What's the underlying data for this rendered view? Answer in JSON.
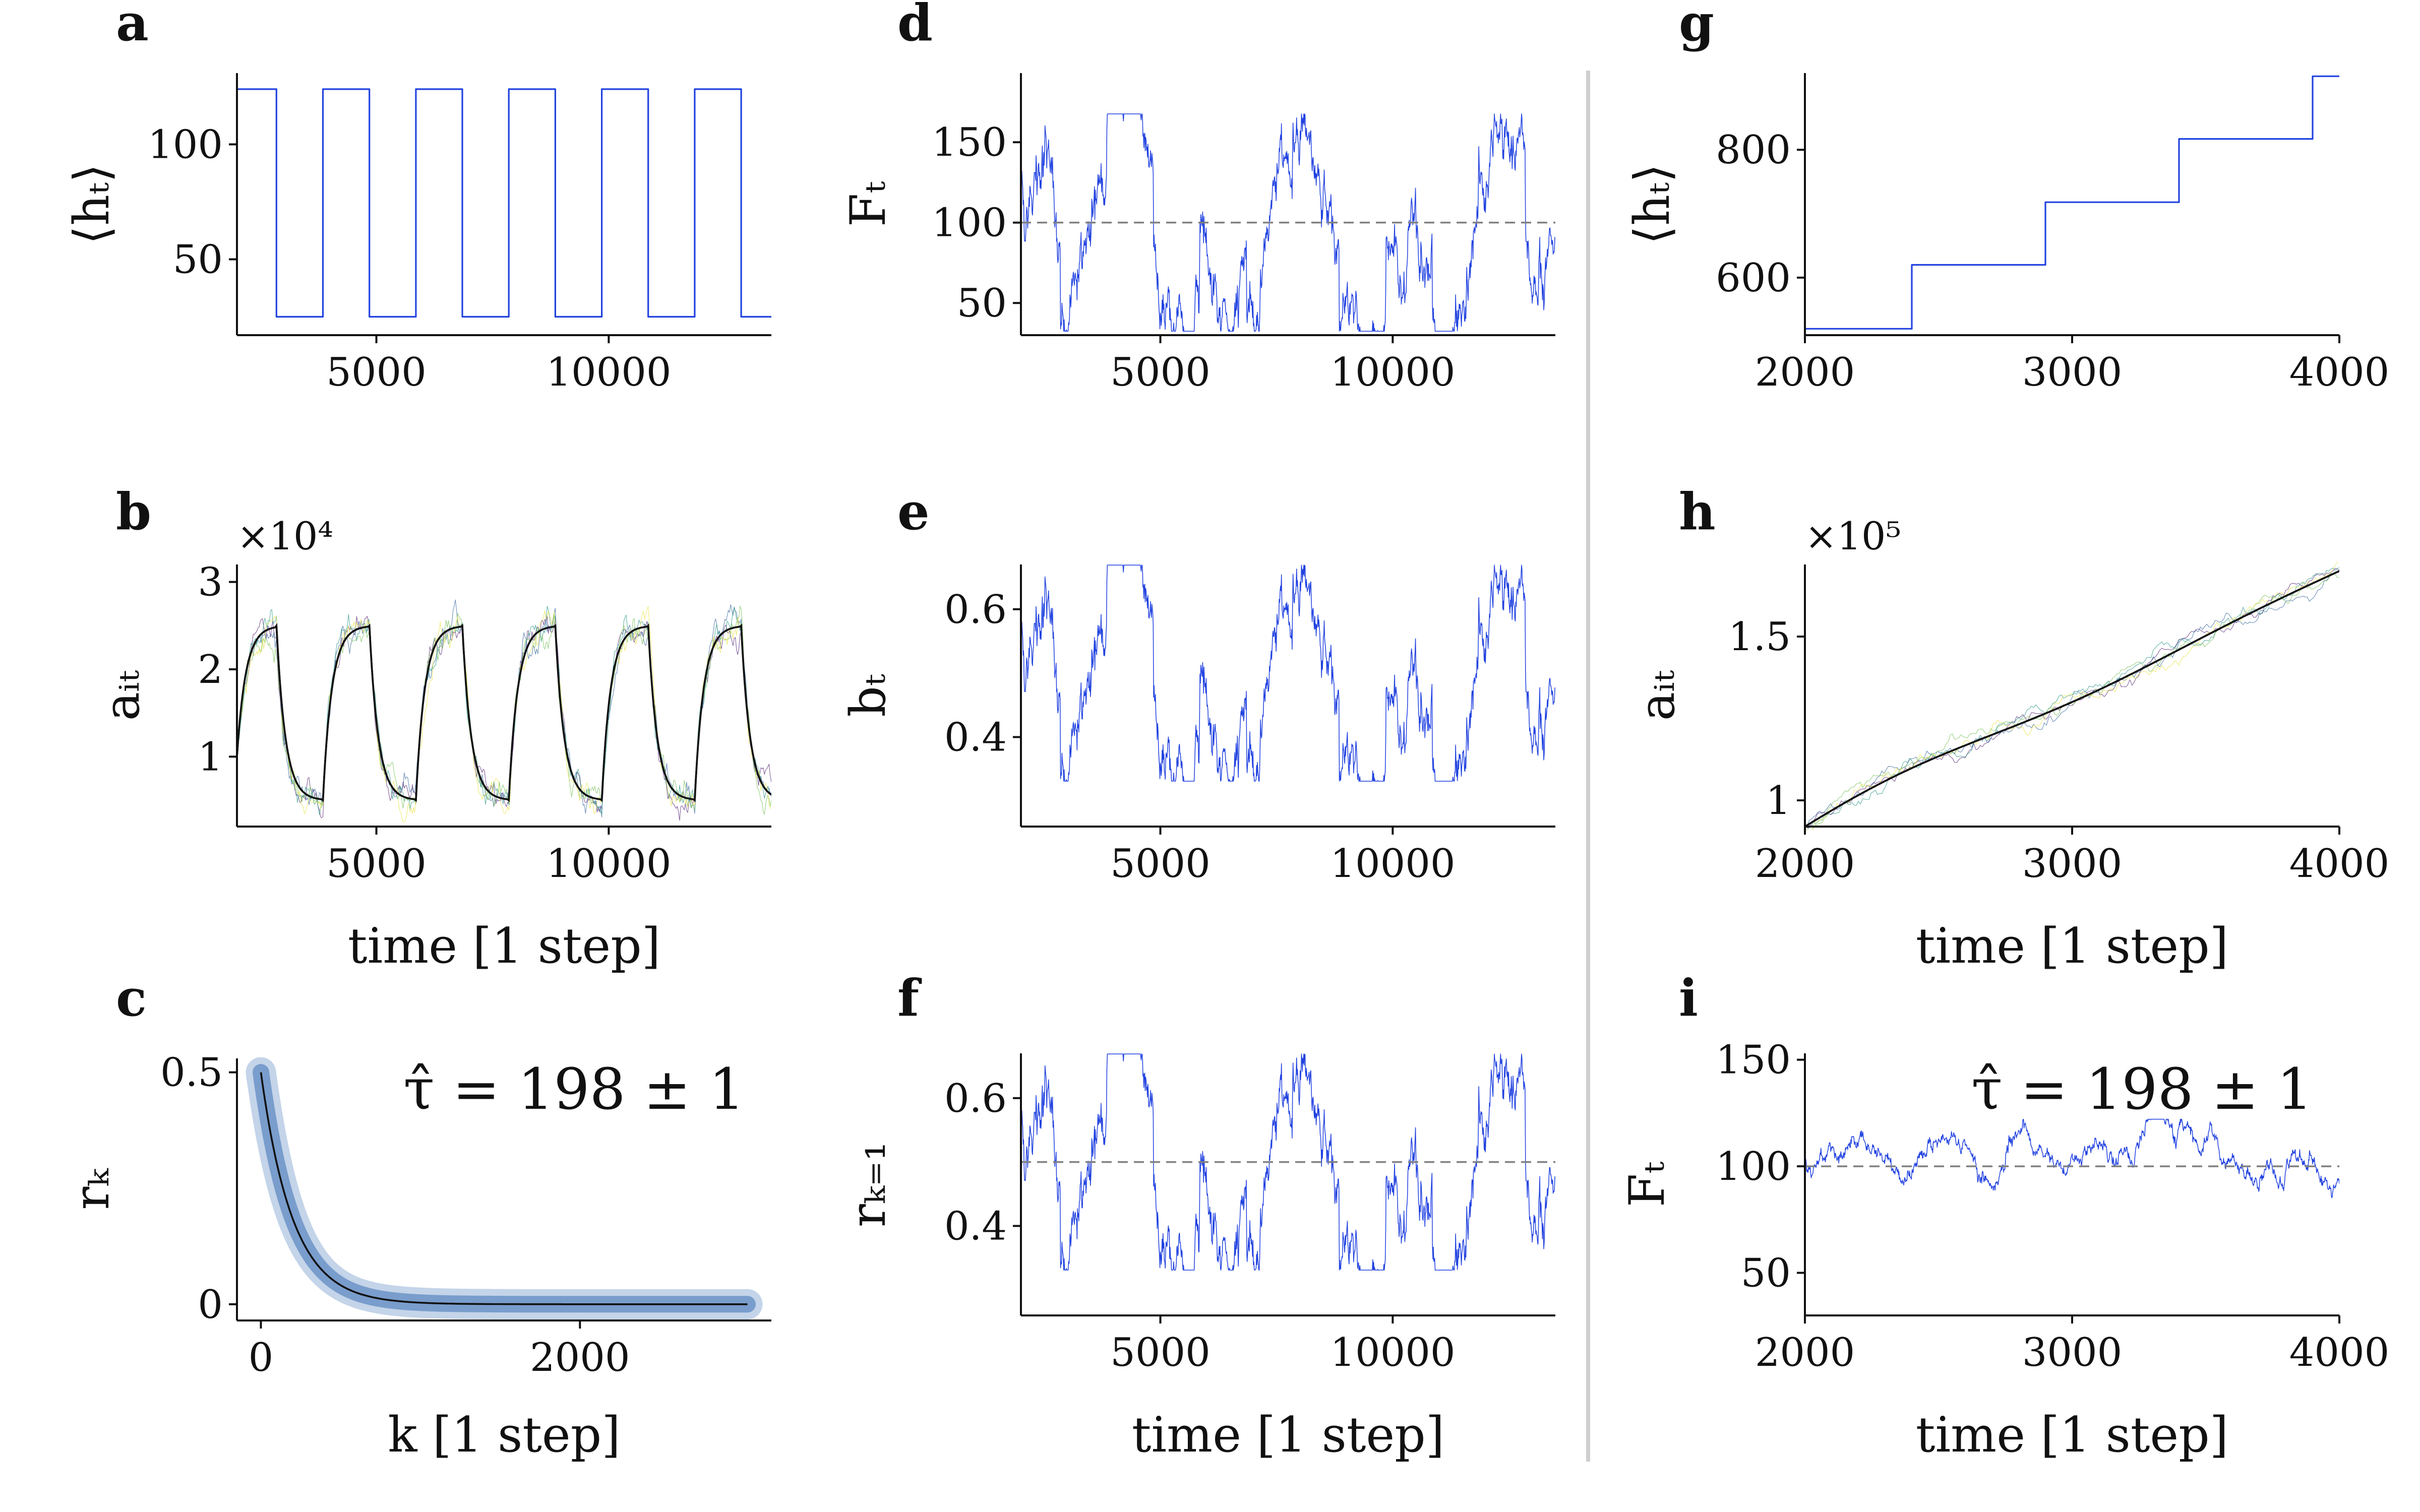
{
  "chart_data": [
    {
      "panel": "a",
      "type": "line",
      "ylabel": "⟨hₜ⟩",
      "xlabel": "",
      "xlim": [
        2000,
        13500
      ],
      "ylim": [
        17,
        131
      ],
      "xticks": [
        5000,
        10000
      ],
      "yticks": [
        50,
        100
      ],
      "series": [
        {
          "name": "⟨hₜ⟩",
          "kind": "step",
          "color": "#2142e0",
          "width": 3.2,
          "x": [
            2000,
            2850,
            2850,
            3850,
            3850,
            4850,
            4850,
            5850,
            5850,
            6850,
            6850,
            7850,
            7850,
            8850,
            8850,
            9850,
            9850,
            10850,
            10850,
            11850,
            11850,
            12850,
            12850,
            13500
          ],
          "y": [
            124,
            124,
            25,
            25,
            124,
            124,
            25,
            25,
            124,
            124,
            25,
            25,
            124,
            124,
            25,
            25,
            124,
            124,
            25,
            25,
            124,
            124,
            25,
            25
          ]
        }
      ]
    },
    {
      "panel": "b",
      "type": "line",
      "ylabel": "aᵢₜ",
      "xlabel": "time [1 step]",
      "sci_label": "×10⁴",
      "xlim": [
        2000,
        13500
      ],
      "ylim": [
        0.2,
        3.2
      ],
      "xticks": [
        5000,
        10000
      ],
      "yticks": [
        1,
        2,
        3
      ],
      "series": [
        {
          "name": "mean",
          "kind": "cycle",
          "color": "#111111",
          "width": 3.6,
          "params": [
            2000,
            13500,
            2850,
            2000,
            1000,
            2.5,
            0.5,
            190,
            1.0
          ]
        },
        {
          "name": "agent 1",
          "kind": "cycle-noise",
          "color": "#5a2a7a",
          "width": 1.1,
          "alpha": 0.75,
          "params": [
            2000,
            13500,
            2850,
            2000,
            1000,
            2.5,
            0.5,
            190,
            1.0,
            0.14,
            11
          ]
        },
        {
          "name": "agent 2",
          "kind": "cycle-noise",
          "color": "#3a6aa0",
          "width": 1.1,
          "alpha": 0.75,
          "params": [
            2000,
            13500,
            2850,
            2000,
            1000,
            2.5,
            0.5,
            190,
            1.0,
            0.14,
            12
          ]
        },
        {
          "name": "agent 3",
          "kind": "cycle-noise",
          "color": "#2f9a8a",
          "width": 1.1,
          "alpha": 0.75,
          "params": [
            2000,
            13500,
            2850,
            2000,
            1000,
            2.5,
            0.5,
            190,
            1.0,
            0.14,
            13
          ]
        },
        {
          "name": "agent 4",
          "kind": "cycle-noise",
          "color": "#7ac35a",
          "width": 1.1,
          "alpha": 0.75,
          "params": [
            2000,
            13500,
            2850,
            2000,
            1000,
            2.5,
            0.5,
            190,
            1.0,
            0.14,
            14
          ]
        },
        {
          "name": "agent 5",
          "kind": "cycle-noise",
          "color": "#e8e34a",
          "width": 1.1,
          "alpha": 0.75,
          "params": [
            2000,
            13500,
            2850,
            2000,
            1000,
            2.5,
            0.5,
            190,
            1.0,
            0.14,
            15
          ]
        }
      ]
    },
    {
      "panel": "c",
      "type": "line",
      "ylabel": "rₖ",
      "xlabel": "k [1 step]",
      "annotation": "τ̂ = 198 ± 1",
      "xlim": [
        -150,
        3200
      ],
      "ylim": [
        -0.035,
        0.53
      ],
      "xticks": [
        0,
        2000
      ],
      "yticks": [
        0.0,
        0.5
      ],
      "series": [
        {
          "name": "estimates",
          "kind": "band",
          "color": "#3d6fb5",
          "width": 60,
          "alpha": 0.3,
          "params": [
            0,
            3050,
            0.5,
            200
          ]
        },
        {
          "name": "fit",
          "kind": "decay",
          "color": "#111111",
          "width": 3.6,
          "params": [
            0,
            3050,
            0.5,
            200
          ]
        }
      ]
    },
    {
      "panel": "d",
      "type": "line",
      "ylabel": "Fₜ",
      "xlabel": "",
      "xlim": [
        2000,
        13500
      ],
      "ylim": [
        30,
        193
      ],
      "xticks": [
        5000,
        10000
      ],
      "yticks": [
        50,
        100,
        150
      ],
      "series": [
        {
          "name": "Fₜ",
          "kind": "noise",
          "color": "#2142e0",
          "width": 1.5,
          "params": [
            2000,
            13500,
            100,
            52,
            0.985,
            0.22,
            7,
            2850,
            2000,
            500
          ]
        },
        {
          "name": "reference",
          "kind": "hline",
          "color": "#808080",
          "width": 3.5,
          "dash": "20 12",
          "params": [
            100
          ]
        }
      ]
    },
    {
      "panel": "e",
      "type": "line",
      "ylabel": "bₜ",
      "xlabel": "",
      "xlim": [
        2000,
        13500
      ],
      "ylim": [
        0.26,
        0.67
      ],
      "xticks": [
        5000,
        10000
      ],
      "yticks": [
        0.4,
        0.6
      ],
      "series": [
        {
          "name": "bₜ",
          "kind": "noise",
          "color": "#2142e0",
          "width": 1.5,
          "params": [
            2000,
            13500,
            0.5,
            0.13,
            0.985,
            0.22,
            7,
            2850,
            2000,
            500
          ]
        }
      ]
    },
    {
      "panel": "f",
      "type": "line",
      "ylabel": "rₖ₌₁",
      "xlabel": "time [1 step]",
      "xlim": [
        2000,
        13500
      ],
      "ylim": [
        0.26,
        0.67
      ],
      "xticks": [
        5000,
        10000
      ],
      "yticks": [
        0.4,
        0.6
      ],
      "series": [
        {
          "name": "rₖ₌₁",
          "kind": "noise",
          "color": "#2142e0",
          "width": 1.5,
          "params": [
            2000,
            13500,
            0.5,
            0.13,
            0.985,
            0.22,
            7,
            2850,
            2000,
            500
          ]
        },
        {
          "name": "reference",
          "kind": "hline",
          "color": "#808080",
          "width": 3.5,
          "dash": "20 12",
          "params": [
            0.5
          ]
        }
      ]
    },
    {
      "panel": "g",
      "type": "line",
      "ylabel": "⟨hₜ⟩",
      "xlabel": "",
      "xlim": [
        2000,
        4000
      ],
      "ylim": [
        510,
        920
      ],
      "xticks": [
        2000,
        3000,
        4000
      ],
      "yticks": [
        600,
        800
      ],
      "series": [
        {
          "name": "⟨hₜ⟩",
          "kind": "step",
          "color": "#2142e0",
          "width": 3.2,
          "x": [
            2000,
            2400,
            2400,
            2900,
            2900,
            3400,
            3400,
            3900,
            3900,
            4000
          ],
          "y": [
            520,
            520,
            620,
            620,
            718,
            718,
            817,
            817,
            915,
            915
          ]
        }
      ]
    },
    {
      "panel": "h",
      "type": "line",
      "ylabel": "aᵢₜ",
      "xlabel": "time [1 step]",
      "sci_label": "×10⁵",
      "xlim": [
        2000,
        4000
      ],
      "ylim": [
        0.92,
        1.72
      ],
      "xticks": [
        2000,
        3000,
        4000
      ],
      "yticks": [
        1.0,
        1.5
      ],
      "series": [
        {
          "name": "mean",
          "kind": "ramp",
          "color": "#111111",
          "width": 3.6,
          "params": [
            2000,
            4000,
            2000,
            0.92,
            1.7,
            0.07
          ]
        },
        {
          "name": "agent 1",
          "kind": "ramp-noise",
          "color": "#5a2a7a",
          "width": 1.1,
          "alpha": 0.75,
          "params": [
            2000,
            4000,
            2000,
            0.92,
            1.7,
            0.07,
            0.02,
            21
          ]
        },
        {
          "name": "agent 2",
          "kind": "ramp-noise",
          "color": "#3a6aa0",
          "width": 1.1,
          "alpha": 0.75,
          "params": [
            2000,
            4000,
            2000,
            0.92,
            1.7,
            0.07,
            0.02,
            22
          ]
        },
        {
          "name": "agent 3",
          "kind": "ramp-noise",
          "color": "#2f9a8a",
          "width": 1.1,
          "alpha": 0.75,
          "params": [
            2000,
            4000,
            2000,
            0.92,
            1.7,
            0.07,
            0.02,
            23
          ]
        },
        {
          "name": "agent 4",
          "kind": "ramp-noise",
          "color": "#7ac35a",
          "width": 1.1,
          "alpha": 0.75,
          "params": [
            2000,
            4000,
            2000,
            0.92,
            1.7,
            0.07,
            0.02,
            24
          ]
        },
        {
          "name": "agent 5",
          "kind": "ramp-noise",
          "color": "#e8e34a",
          "width": 1.1,
          "alpha": 0.75,
          "params": [
            2000,
            4000,
            2000,
            0.92,
            1.7,
            0.07,
            0.02,
            25
          ]
        }
      ]
    },
    {
      "panel": "i",
      "type": "line",
      "ylabel": "Fₜ",
      "xlabel": "time [1 step]",
      "annotation": "τ̂ = 198 ± 1",
      "xlim": [
        2000,
        4000
      ],
      "ylim": [
        30,
        153
      ],
      "xticks": [
        2000,
        3000,
        4000
      ],
      "yticks": [
        50,
        100,
        150
      ],
      "series": [
        {
          "name": "Fₜ",
          "kind": "noise",
          "color": "#2142e0",
          "width": 1.5,
          "params": [
            2000,
            4000,
            100,
            17,
            0.99,
            0.14,
            9,
            0,
            0,
            0
          ]
        },
        {
          "name": "reference",
          "kind": "hline",
          "color": "#808080",
          "width": 3.5,
          "dash": "20 12",
          "params": [
            100
          ]
        }
      ]
    }
  ]
}
